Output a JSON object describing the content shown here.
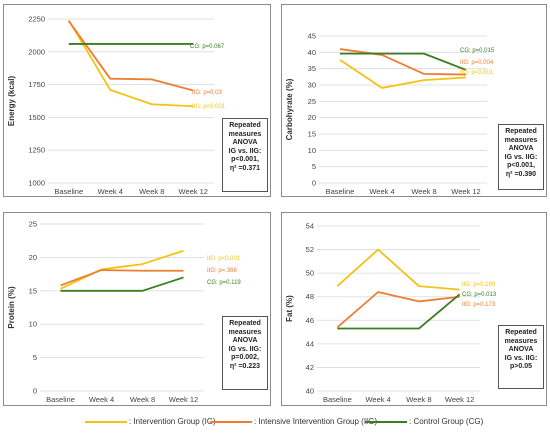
{
  "chart_data": [
    {
      "type": "line",
      "ylabel": "Energy (kcal)",
      "categories": [
        "Baseline",
        "Week 4",
        "Week 8",
        "Week 12"
      ],
      "ylim": [
        1000,
        2250
      ],
      "yticks": [
        1000,
        1250,
        1500,
        1750,
        2000,
        2250
      ],
      "series": [
        {
          "name": "Intervention Group (IG)",
          "color": "#f2c314",
          "values": [
            2240,
            1710,
            1600,
            1585
          ]
        },
        {
          "name": "Intensive Intervention Group (IIG)",
          "color": "#ed7d31",
          "values": [
            2235,
            1795,
            1790,
            1705
          ]
        },
        {
          "name": "Control Group (CG)",
          "color": "#3a7d22",
          "values": [
            2060,
            2060,
            2060,
            2060
          ]
        }
      ],
      "annotations": [
        "CG: p=0.067",
        "IIG: p=0.03",
        "IIG: p<0.001"
      ],
      "anova_box": [
        "Repeated",
        "measures",
        "ANOVA",
        "IG vs. IIG:",
        "p<0.001,",
        "η² =0.371"
      ]
    },
    {
      "type": "line",
      "ylabel": "Carbohyrate (%)",
      "categories": [
        "Baseline",
        "Week 4",
        "Week 8",
        "Week 12"
      ],
      "ylim": [
        0,
        45
      ],
      "yticks": [
        0,
        5,
        10,
        15,
        20,
        25,
        30,
        35,
        40,
        45
      ],
      "series": [
        {
          "name": "Intervention Group (IG)",
          "color": "#f2c314",
          "values": [
            37.7,
            29.1,
            31.5,
            32.3
          ]
        },
        {
          "name": "Intensive Intervention Group (IIG)",
          "color": "#ed7d31",
          "values": [
            41.0,
            39.2,
            33.4,
            33.2
          ]
        },
        {
          "name": "Control Group (CG)",
          "color": "#3a7d22",
          "values": [
            39.6,
            39.6,
            39.6,
            34.6
          ]
        }
      ],
      "annotations": [
        "CG: p=0.015",
        "IIG: p=0.004",
        "IIG: p<0.001"
      ],
      "anova_box": [
        "Repeated",
        "measures",
        "ANOVA",
        "IG vs. IIG:",
        "p<0.001,",
        "η² =0.390"
      ]
    },
    {
      "type": "line",
      "ylabel": "Protein (%)",
      "categories": [
        "Baseline",
        "Week 4",
        "Week 8",
        "Week 12"
      ],
      "ylim": [
        0,
        25
      ],
      "yticks": [
        0,
        5,
        10,
        15,
        20,
        25
      ],
      "series": [
        {
          "name": "Intervention Group (IG)",
          "color": "#f2c314",
          "values": [
            15.3,
            18.2,
            19.0,
            21.0
          ]
        },
        {
          "name": "Intensive Intervention Group (IIG)",
          "color": "#ed7d31",
          "values": [
            15.8,
            18.1,
            18.0,
            18.0
          ]
        },
        {
          "name": "Control Group (CG)",
          "color": "#3a7d22",
          "values": [
            15.0,
            15.0,
            15.0,
            17.0
          ]
        }
      ],
      "annotations": [
        "IIG: p<0.001",
        "IIG: p=.366",
        "CG: p=0.119"
      ],
      "anova_box": [
        "Repeated",
        "measures",
        "ANOVA",
        "IG vs. IIG:",
        "p=0.002,",
        "η² =0.223"
      ]
    },
    {
      "type": "line",
      "ylabel": "Fat (%)",
      "categories": [
        "Baseline",
        "Week 4",
        "Week 8",
        "Week 12"
      ],
      "ylim": [
        40,
        54
      ],
      "yticks": [
        40,
        42,
        44,
        46,
        48,
        50,
        52,
        54
      ],
      "series": [
        {
          "name": "Intervention Group (IG)",
          "color": "#f2c314",
          "values": [
            48.9,
            52.0,
            48.9,
            48.6
          ]
        },
        {
          "name": "Intensive Intervention Group (IIG)",
          "color": "#ed7d31",
          "values": [
            45.4,
            48.4,
            47.6,
            48.0
          ]
        },
        {
          "name": "Control Group (CG)",
          "color": "#3a7d22",
          "values": [
            45.3,
            45.3,
            45.3,
            48.2
          ]
        }
      ],
      "annotations": [
        "IIG: p=0.199",
        "CG: p=0.013",
        "IIG: p=0.173"
      ],
      "anova_box": [
        "Repeated",
        "measures",
        "ANOVA",
        "IG vs. IIG:",
        "p>0.05"
      ]
    }
  ],
  "legend": [
    {
      "label": ": Intervention Group (IG)",
      "color": "#f2c314"
    },
    {
      "label": ": Intensive Intervention Group (IIG)",
      "color": "#ed7d31"
    },
    {
      "label": ": Control Group (CG)",
      "color": "#3a7d22"
    }
  ]
}
